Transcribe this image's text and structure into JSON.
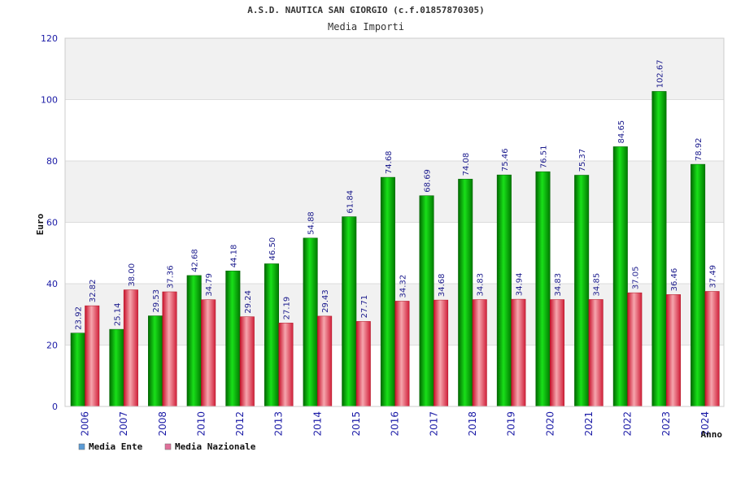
{
  "chart_data": {
    "type": "bar",
    "title": "A.S.D. NAUTICA SAN GIORGIO (c.f.01857870305)",
    "subtitle": "Media Importi",
    "xlabel": "Anno",
    "ylabel": "Euro",
    "ylim": [
      0,
      120
    ],
    "yticks": [
      0,
      20,
      40,
      60,
      80,
      100,
      120
    ],
    "grid": true,
    "legend_position": "bottom-left",
    "categories": [
      "2006",
      "2007",
      "2008",
      "2010",
      "2012",
      "2013",
      "2014",
      "2015",
      "2016",
      "2017",
      "2018",
      "2019",
      "2020",
      "2021",
      "2022",
      "2023",
      "2024"
    ],
    "series": [
      {
        "name": "Media Ente",
        "color": "#00bb00",
        "legend_color": "#5b9bd5",
        "values": [
          23.92,
          25.14,
          29.53,
          42.68,
          44.18,
          46.5,
          54.88,
          61.84,
          74.68,
          68.69,
          74.08,
          75.46,
          76.51,
          75.37,
          84.65,
          102.67,
          78.92
        ],
        "labels": [
          "23.92",
          "25.14",
          "29.53",
          "42.68",
          "44.18",
          "46.50",
          "54.88",
          "61.84",
          "74.68",
          "68.69",
          "74.08",
          "75.46",
          "76.51",
          "75.37",
          "84.65",
          "102.67",
          "78.92"
        ]
      },
      {
        "name": "Media Nazionale",
        "color": "#e8404a",
        "legend_color": "#e0709a",
        "values": [
          32.82,
          38.0,
          37.36,
          34.79,
          29.24,
          27.19,
          29.43,
          27.71,
          34.32,
          34.68,
          34.83,
          34.94,
          34.83,
          34.85,
          37.05,
          36.46,
          37.49
        ],
        "labels": [
          "32.82",
          "38.00",
          "37.36",
          "34.79",
          "29.24",
          "27.19",
          "29.43",
          "27.71",
          "34.32",
          "34.68",
          "34.83",
          "34.94",
          "34.83",
          "34.85",
          "37.05",
          "36.46",
          "37.49"
        ]
      }
    ]
  }
}
